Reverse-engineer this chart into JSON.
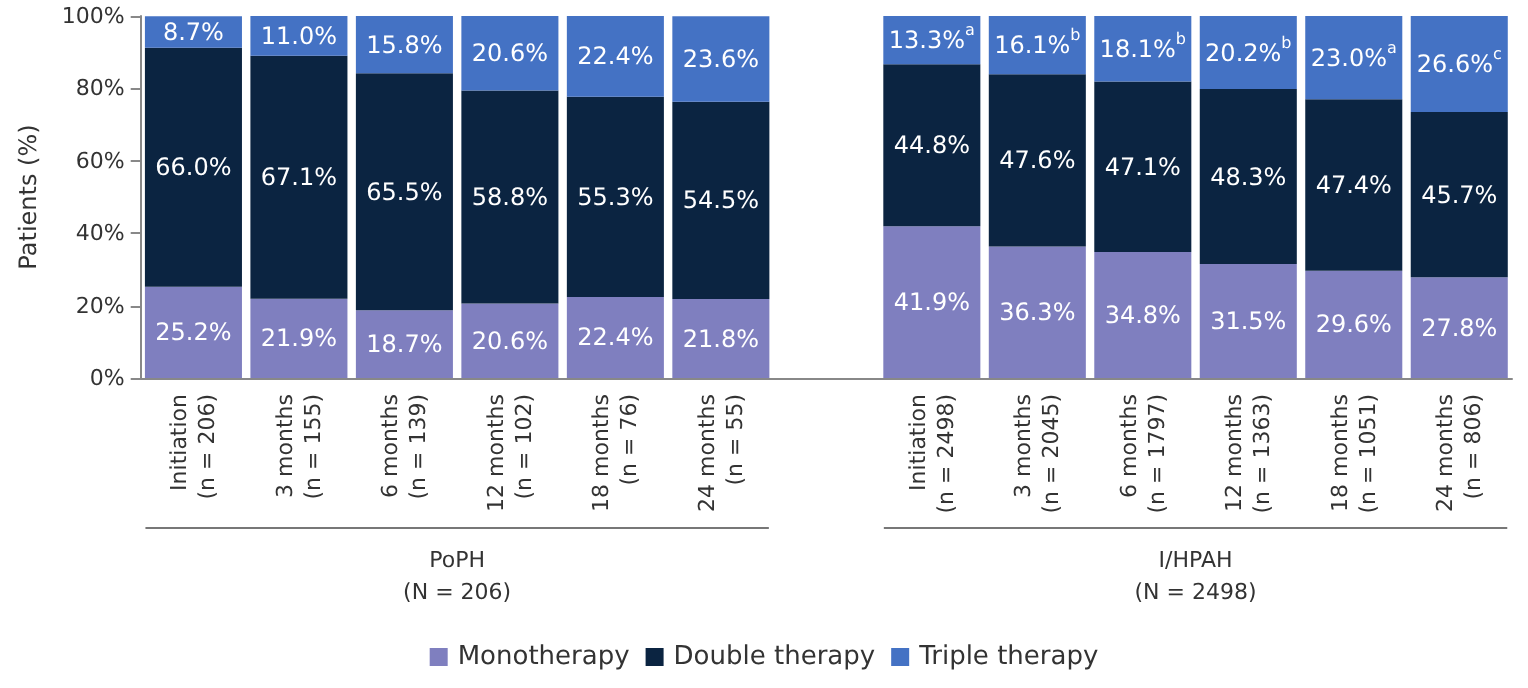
{
  "chart_data": {
    "type": "bar",
    "stacked": true,
    "ylabel": "Patients (%)",
    "categories": [
      "Initiation\n(n = 206)",
      "3 months\n(n = 155)",
      "6 months\n(n = 139)",
      "12 months\n(n = 102)",
      "18 months\n(n = 76)",
      "24 months\n(n = 55)",
      null,
      "Initiation\n(n = 2498)",
      "3 months\n(n = 2045)",
      "6 months\n(n = 1797)",
      "12 months\n(n = 1363)",
      "18 months\n(n = 1051)",
      "24 months\n(n = 806)"
    ],
    "series": [
      {
        "name": "Monotherapy",
        "color": "#7f7fbf",
        "values": [
          25.2,
          21.9,
          18.7,
          20.6,
          22.4,
          21.8,
          null,
          41.9,
          36.3,
          34.8,
          31.5,
          29.6,
          27.8
        ],
        "value_labels": [
          "25.2%",
          "21.9%",
          "18.7%",
          "20.6%",
          "22.4%",
          "21.8%",
          null,
          "41.9%",
          "36.3%",
          "34.8%",
          "31.5%",
          "29.6%",
          "27.8%"
        ]
      },
      {
        "name": "Double therapy",
        "color": "#0b2441",
        "values": [
          66.0,
          67.1,
          65.5,
          58.8,
          55.3,
          54.5,
          null,
          44.8,
          47.6,
          47.1,
          48.3,
          47.4,
          45.7
        ],
        "value_labels": [
          "66.0%",
          "67.1%",
          "65.5%",
          "58.8%",
          "55.3%",
          "54.5%",
          null,
          "44.8%",
          "47.6%",
          "47.1%",
          "48.3%",
          "47.4%",
          "45.7%"
        ]
      },
      {
        "name": "Triple therapy",
        "color": "#4472c4",
        "values": [
          8.7,
          11.0,
          15.8,
          20.6,
          22.4,
          23.6,
          null,
          13.3,
          16.1,
          18.1,
          20.2,
          23.0,
          26.6
        ],
        "value_labels": [
          "8.7%",
          "11.0%",
          "15.8%",
          "20.6%",
          "22.4%",
          "23.6%",
          null,
          "13.3%$^{a}$",
          "16.1%$^{b}$",
          "18.1%$^{b}$",
          "20.2%$^{b}$",
          "23.0%$^{a}$",
          "26.6%$^{c}$"
        ]
      }
    ],
    "ylim": [
      0,
      100
    ],
    "yticks": [
      {
        "value": 0,
        "label": "0%"
      },
      {
        "value": 20,
        "label": "20%"
      },
      {
        "value": 40,
        "label": "40%"
      },
      {
        "value": 60,
        "label": "60%"
      },
      {
        "value": 80,
        "label": "80%"
      },
      {
        "value": 100,
        "label": "100%"
      }
    ],
    "annotations": [
      "PoPH\n(N = 206)",
      "I/HPAH\n(N = 2498)"
    ],
    "grid": false,
    "legend": "bottom"
  }
}
